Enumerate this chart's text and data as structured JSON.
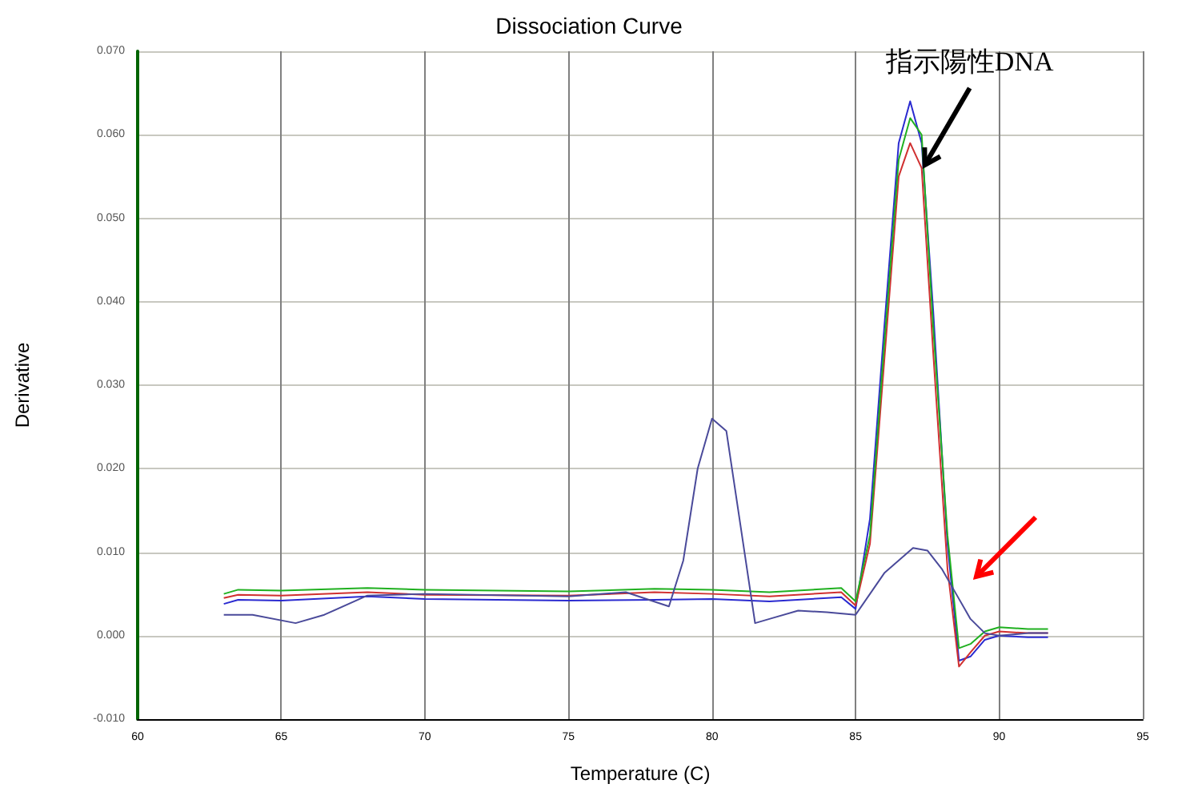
{
  "chart_data": {
    "type": "line",
    "title": "Dissociation Curve",
    "xlabel": "Temperature (C)",
    "ylabel": "Derivative",
    "x": [
      63,
      63.5,
      65,
      68,
      70,
      75,
      78,
      80,
      82,
      84.5,
      85,
      85.5,
      86,
      86.5,
      86.9,
      87.3,
      87.7,
      88.2,
      88.6,
      89,
      89.5,
      90,
      91,
      91.7
    ],
    "series": [
      {
        "color": "#2a2ad0",
        "values": [
          0.0038,
          0.0043,
          0.0042,
          0.0047,
          0.0044,
          0.0042,
          0.0043,
          0.0044,
          0.0041,
          0.0046,
          0.0032,
          0.014,
          0.037,
          0.059,
          0.064,
          0.059,
          0.039,
          0.011,
          -0.003,
          -0.0025,
          -0.0005,
          0,
          -0.0002,
          -0.0002
        ]
      },
      {
        "color": "#d03030",
        "values": [
          0.0045,
          0.0049,
          0.0048,
          0.0052,
          0.0049,
          0.0048,
          0.0052,
          0.005,
          0.0047,
          0.0052,
          0.0036,
          0.011,
          0.033,
          0.055,
          0.059,
          0.056,
          0.034,
          0.008,
          -0.0037,
          -0.002,
          0,
          0.0005,
          0.0003,
          0.0003
        ]
      },
      {
        "color": "#20b020",
        "values": [
          0.005,
          0.0055,
          0.0054,
          0.0057,
          0.0055,
          0.0053,
          0.0056,
          0.0055,
          0.0052,
          0.0057,
          0.0041,
          0.012,
          0.035,
          0.057,
          0.062,
          0.06,
          0.037,
          0.012,
          -0.0015,
          -0.001,
          0.0005,
          0.001,
          0.0008,
          0.0008
        ]
      },
      {
        "color": "#4a4a9a",
        "x": [
          63,
          64,
          65.5,
          66.5,
          68,
          70,
          75,
          77,
          78.5,
          79,
          79.5,
          80,
          80.5,
          81,
          81.5,
          82,
          83,
          84,
          85,
          86,
          87,
          87.5,
          88,
          88.5,
          89,
          89.5,
          90,
          91,
          91.7
        ],
        "values": [
          0.0025,
          0.0025,
          0.0015,
          0.0025,
          0.0048,
          0.005,
          0.0047,
          0.0052,
          0.0035,
          0.009,
          0.02,
          0.026,
          0.0245,
          0.013,
          0.0015,
          0.002,
          0.003,
          0.0028,
          0.0025,
          0.0075,
          0.0105,
          0.0102,
          0.008,
          0.005,
          0.002,
          0.0003,
          0,
          0.0003,
          0.0003
        ]
      }
    ],
    "xlim": [
      60,
      95
    ],
    "xticks": [
      60,
      65,
      70,
      75,
      80,
      85,
      90,
      95
    ],
    "ylim": [
      -0.01,
      0.07
    ],
    "yticks": [
      {
        "value": -0.01,
        "label": "-0.010"
      },
      {
        "value": 0,
        "label": "0.000"
      },
      {
        "value": 0.01,
        "label": "0.010"
      },
      {
        "value": 0.02,
        "label": "0.020"
      },
      {
        "value": 0.03,
        "label": "0.030"
      },
      {
        "value": 0.04,
        "label": "0.040"
      },
      {
        "value": 0.05,
        "label": "0.050"
      },
      {
        "value": 0.06,
        "label": "0.060"
      },
      {
        "value": 0.07,
        "label": "0.070"
      }
    ],
    "grid": true,
    "marker": "none",
    "line_style": "solid",
    "annotations": [
      {
        "text": "指示陽性DNA",
        "x": 87.3,
        "y": 0.056
      }
    ]
  }
}
